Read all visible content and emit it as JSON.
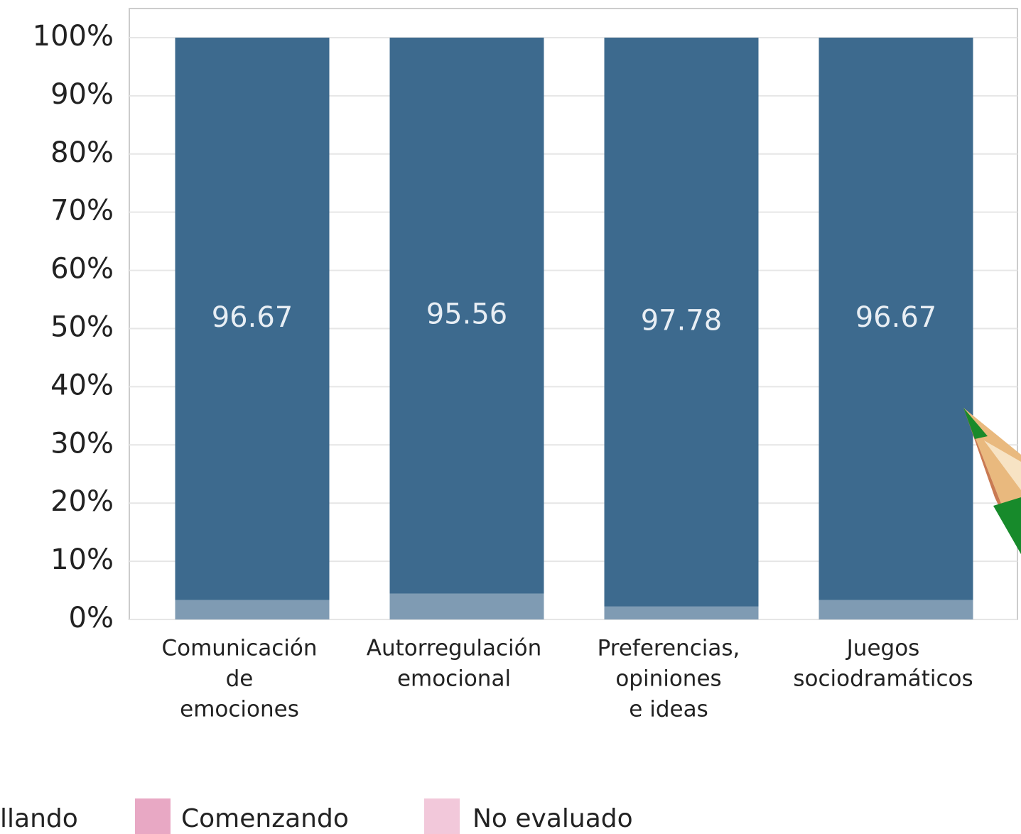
{
  "chart_data": {
    "type": "stacked_bar",
    "categories": [
      [
        "Comunicación",
        "de",
        "emociones"
      ],
      [
        "Autorregulación",
        "emocional"
      ],
      [
        "Preferencias,",
        "opiniones",
        "e ideas"
      ],
      [
        "Juegos",
        "sociodramáticos"
      ]
    ],
    "series": [
      {
        "name": "llando",
        "color": "#7f9bb3",
        "values": [
          3.33,
          4.44,
          2.22,
          3.33
        ]
      },
      {
        "name": "Comenzando",
        "color": "#e8a8c4",
        "values": [
          0,
          0,
          0,
          0
        ]
      },
      {
        "name": "No evaluado",
        "color": "#f2c8da",
        "values": [
          0,
          0,
          0,
          0
        ]
      },
      {
        "color": "#3d6a8e",
        "values": [
          96.67,
          95.56,
          97.78,
          96.67
        ],
        "labels": true
      }
    ],
    "ylim": [
      0,
      105
    ],
    "yticks": [
      {
        "value": 0,
        "label": "0%"
      },
      {
        "value": 10,
        "label": "10%"
      },
      {
        "value": 20,
        "label": "20%"
      },
      {
        "value": 30,
        "label": "30%"
      },
      {
        "value": 40,
        "label": "40%"
      },
      {
        "value": 50,
        "label": "50%"
      },
      {
        "value": 60,
        "label": "60%"
      },
      {
        "value": 70,
        "label": "70%"
      },
      {
        "value": 80,
        "label": "80%"
      },
      {
        "value": 90,
        "label": "90%"
      },
      {
        "value": 100,
        "label": "100%"
      }
    ],
    "grid": true
  }
}
